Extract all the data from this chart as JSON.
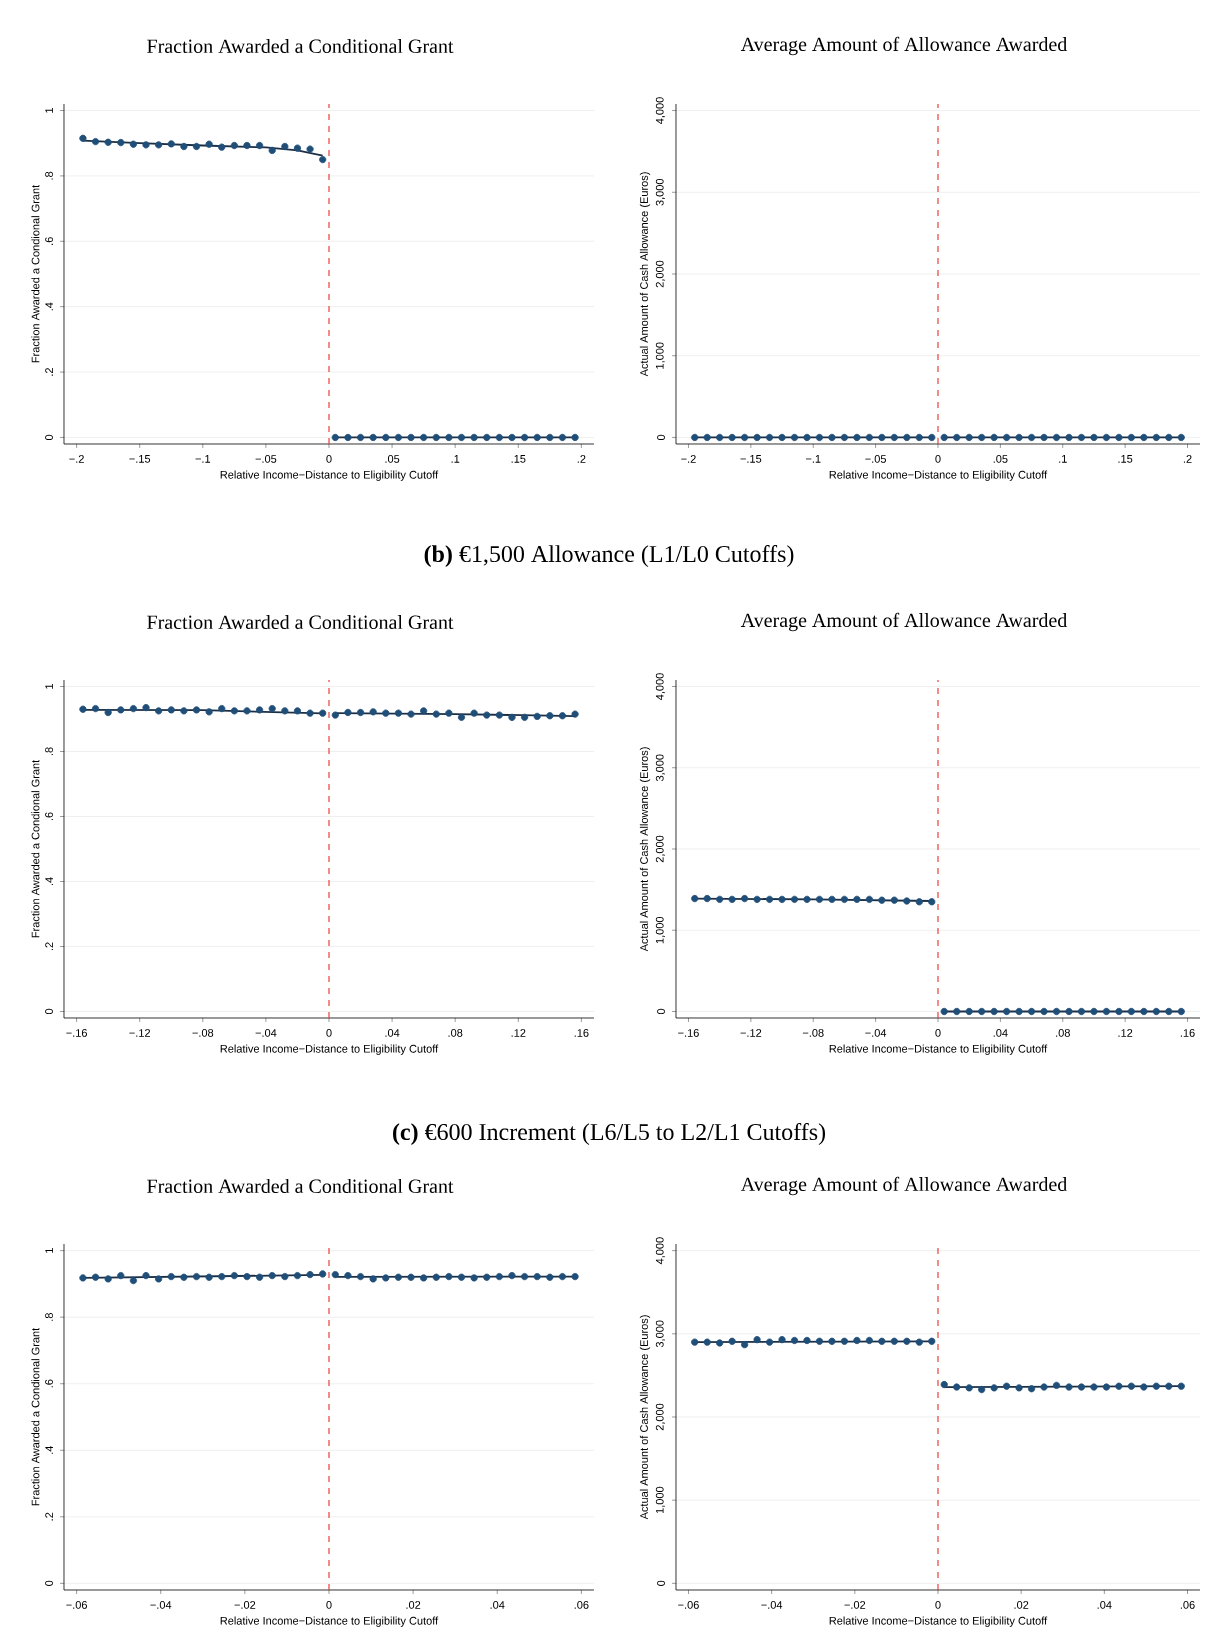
{
  "chart_data": [
    {
      "type": "scatter",
      "title": "Fraction Awarded a Conditional Grant",
      "xlabel": "Relative Income−Distance to Eligibility Cutoff",
      "ylabel": "Fraction Awarded a Condional Grant",
      "grid": "y",
      "xlim": [
        -0.21,
        0.21
      ],
      "ylim": [
        -0.02,
        1.02
      ],
      "xticks": [
        {
          "value": -0.2,
          "label": "−.2"
        },
        {
          "value": -0.15,
          "label": "−.15"
        },
        {
          "value": -0.1,
          "label": "−.1"
        },
        {
          "value": -0.05,
          "label": "−.05"
        },
        0,
        {
          "value": 0.05,
          "label": ".05"
        },
        {
          "value": 0.1,
          "label": ".1"
        },
        {
          "value": 0.15,
          "label": ".15"
        },
        {
          "value": 0.2,
          "label": ".2"
        }
      ],
      "yticks": [
        0,
        {
          "value": 0.2,
          "label": ".2"
        },
        {
          "value": 0.4,
          "label": ".4"
        },
        {
          "value": 0.6,
          "label": ".6"
        },
        {
          "value": 0.8,
          "label": ".8"
        },
        1
      ],
      "ref_lines": [
        {
          "axis": "x",
          "value": 0,
          "color": "#e8423c",
          "line_style": "dashed"
        }
      ],
      "x": [
        -0.195,
        -0.185,
        -0.175,
        -0.165,
        -0.155,
        -0.145,
        -0.135,
        -0.125,
        -0.115,
        -0.105,
        -0.095,
        -0.085,
        -0.075,
        -0.065,
        -0.055,
        -0.045,
        -0.035,
        -0.025,
        -0.015,
        -0.005,
        0.005,
        0.015,
        0.025,
        0.035,
        0.045,
        0.055,
        0.065,
        0.075,
        0.085,
        0.095,
        0.105,
        0.115,
        0.125,
        0.135,
        0.145,
        0.155,
        0.165,
        0.175,
        0.185,
        0.195
      ],
      "series": [
        {
          "type": "scatter",
          "marker": "circle",
          "color": "#1f4e79",
          "values": [
            0.915,
            0.905,
            0.903,
            0.902,
            0.897,
            0.895,
            0.895,
            0.898,
            0.89,
            0.89,
            0.897,
            0.888,
            0.893,
            0.893,
            0.893,
            0.878,
            0.89,
            0.885,
            0.882,
            0.85,
            0,
            0,
            0,
            0,
            0,
            0,
            0,
            0,
            0,
            0,
            0,
            0,
            0,
            0,
            0,
            0,
            0,
            0,
            0,
            0
          ]
        },
        {
          "type": "line",
          "color": "#1c2f45",
          "x": [
            -0.195,
            -0.15,
            -0.1,
            -0.05,
            -0.025,
            -0.005
          ],
          "values": [
            0.908,
            0.9,
            0.893,
            0.887,
            0.878,
            0.862
          ]
        },
        {
          "type": "line",
          "color": "#1c2f45",
          "x": [
            0.005,
            0.195
          ],
          "values": [
            0,
            0
          ]
        }
      ]
    },
    {
      "type": "scatter",
      "title": "Average Amount of Allowance Awarded",
      "xlabel": "Relative Income−Distance to Eligibility Cutoff",
      "ylabel": "Actual Amount of Cash Allowance (Euros)",
      "grid": "y",
      "xlim": [
        -0.21,
        0.21
      ],
      "ylim": [
        -80,
        4080
      ],
      "xticks": [
        {
          "value": -0.2,
          "label": "−.2"
        },
        {
          "value": -0.15,
          "label": "−.15"
        },
        {
          "value": -0.1,
          "label": "−.1"
        },
        {
          "value": -0.05,
          "label": "−.05"
        },
        0,
        {
          "value": 0.05,
          "label": ".05"
        },
        {
          "value": 0.1,
          "label": ".1"
        },
        {
          "value": 0.15,
          "label": ".15"
        },
        {
          "value": 0.2,
          "label": ".2"
        }
      ],
      "yticks": [
        0,
        {
          "value": 1000,
          "label": "1,000"
        },
        {
          "value": 2000,
          "label": "2,000"
        },
        {
          "value": 3000,
          "label": "3,000"
        },
        {
          "value": 4000,
          "label": "4,000"
        }
      ],
      "ref_lines": [
        {
          "axis": "x",
          "value": 0,
          "color": "#e8423c",
          "line_style": "dashed"
        }
      ],
      "x": [
        -0.195,
        -0.185,
        -0.175,
        -0.165,
        -0.155,
        -0.145,
        -0.135,
        -0.125,
        -0.115,
        -0.105,
        -0.095,
        -0.085,
        -0.075,
        -0.065,
        -0.055,
        -0.045,
        -0.035,
        -0.025,
        -0.015,
        -0.005,
        0.005,
        0.015,
        0.025,
        0.035,
        0.045,
        0.055,
        0.065,
        0.075,
        0.085,
        0.095,
        0.105,
        0.115,
        0.125,
        0.135,
        0.145,
        0.155,
        0.165,
        0.175,
        0.185,
        0.195
      ],
      "series": [
        {
          "type": "scatter",
          "marker": "circle",
          "color": "#1f4e79",
          "values": [
            0,
            0,
            0,
            0,
            0,
            0,
            0,
            0,
            0,
            0,
            0,
            0,
            0,
            0,
            0,
            0,
            0,
            0,
            0,
            0,
            0,
            0,
            0,
            0,
            0,
            0,
            0,
            0,
            0,
            0,
            0,
            0,
            0,
            0,
            0,
            0,
            0,
            0,
            0,
            0
          ]
        },
        {
          "type": "line",
          "color": "#1c2f45",
          "x": [
            -0.195,
            -0.005
          ],
          "values": [
            0,
            0
          ]
        },
        {
          "type": "line",
          "color": "#1c2f45",
          "x": [
            0.005,
            0.195
          ],
          "values": [
            0,
            0
          ]
        }
      ]
    },
    {
      "type": "other",
      "title": "**(b)** €1,500 Allowance (L1/L0 Cutoffs)"
    },
    {
      "type": "scatter",
      "title": "Fraction Awarded a Conditional Grant",
      "xlabel": "Relative Income−Distance to Eligibility Cutoff",
      "ylabel": "Fraction Awarded a Condional Grant",
      "grid": "y",
      "xlim": [
        -0.168,
        0.168
      ],
      "ylim": [
        -0.02,
        1.02
      ],
      "xticks": [
        {
          "value": -0.16,
          "label": "−.16"
        },
        {
          "value": -0.12,
          "label": "−.12"
        },
        {
          "value": -0.08,
          "label": "−.08"
        },
        {
          "value": -0.04,
          "label": "−.04"
        },
        0,
        {
          "value": 0.04,
          "label": ".04"
        },
        {
          "value": 0.08,
          "label": ".08"
        },
        {
          "value": 0.12,
          "label": ".12"
        },
        {
          "value": 0.16,
          "label": ".16"
        }
      ],
      "yticks": [
        0,
        {
          "value": 0.2,
          "label": ".2"
        },
        {
          "value": 0.4,
          "label": ".4"
        },
        {
          "value": 0.6,
          "label": ".6"
        },
        {
          "value": 0.8,
          "label": ".8"
        },
        1
      ],
      "ref_lines": [
        {
          "axis": "x",
          "value": 0,
          "color": "#e8423c",
          "line_style": "dashed"
        }
      ],
      "x": [
        -0.156,
        -0.148,
        -0.14,
        -0.132,
        -0.124,
        -0.116,
        -0.108,
        -0.1,
        -0.092,
        -0.084,
        -0.076,
        -0.068,
        -0.06,
        -0.052,
        -0.044,
        -0.036,
        -0.028,
        -0.02,
        -0.012,
        -0.004,
        0.004,
        0.012,
        0.02,
        0.028,
        0.036,
        0.044,
        0.052,
        0.06,
        0.068,
        0.076,
        0.084,
        0.092,
        0.1,
        0.108,
        0.116,
        0.124,
        0.132,
        0.14,
        0.148,
        0.156
      ],
      "series": [
        {
          "type": "scatter",
          "marker": "circle",
          "color": "#1f4e79",
          "values": [
            0.93,
            0.932,
            0.92,
            0.928,
            0.932,
            0.935,
            0.925,
            0.928,
            0.925,
            0.928,
            0.922,
            0.932,
            0.925,
            0.925,
            0.928,
            0.932,
            0.925,
            0.925,
            0.918,
            0.918,
            0.912,
            0.92,
            0.92,
            0.922,
            0.918,
            0.918,
            0.915,
            0.925,
            0.915,
            0.918,
            0.905,
            0.918,
            0.912,
            0.912,
            0.905,
            0.905,
            0.908,
            0.91,
            0.91,
            0.915
          ]
        },
        {
          "type": "line",
          "color": "#1c2f45",
          "x": [
            -0.156,
            -0.08,
            -0.004
          ],
          "values": [
            0.928,
            0.927,
            0.917
          ]
        },
        {
          "type": "line",
          "color": "#1c2f45",
          "x": [
            0.004,
            0.08,
            0.156
          ],
          "values": [
            0.918,
            0.915,
            0.909
          ]
        }
      ]
    },
    {
      "type": "scatter",
      "title": "Average Amount of Allowance Awarded",
      "xlabel": "Relative Income−Distance to Eligibility Cutoff",
      "ylabel": "Actual Amount of Cash Allowance (Euros)",
      "grid": "y",
      "xlim": [
        -0.168,
        0.168
      ],
      "ylim": [
        -80,
        4080
      ],
      "xticks": [
        {
          "value": -0.16,
          "label": "−.16"
        },
        {
          "value": -0.12,
          "label": "−.12"
        },
        {
          "value": -0.08,
          "label": "−.08"
        },
        {
          "value": -0.04,
          "label": "−.04"
        },
        0,
        {
          "value": 0.04,
          "label": ".04"
        },
        {
          "value": 0.08,
          "label": ".08"
        },
        {
          "value": 0.12,
          "label": ".12"
        },
        {
          "value": 0.16,
          "label": ".16"
        }
      ],
      "yticks": [
        0,
        {
          "value": 1000,
          "label": "1,000"
        },
        {
          "value": 2000,
          "label": "2,000"
        },
        {
          "value": 3000,
          "label": "3,000"
        },
        {
          "value": 4000,
          "label": "4,000"
        }
      ],
      "ref_lines": [
        {
          "axis": "x",
          "value": 0,
          "color": "#e8423c",
          "line_style": "dashed"
        }
      ],
      "x": [
        -0.156,
        -0.148,
        -0.14,
        -0.132,
        -0.124,
        -0.116,
        -0.108,
        -0.1,
        -0.092,
        -0.084,
        -0.076,
        -0.068,
        -0.06,
        -0.052,
        -0.044,
        -0.036,
        -0.028,
        -0.02,
        -0.012,
        -0.004,
        0.004,
        0.012,
        0.02,
        0.028,
        0.036,
        0.044,
        0.052,
        0.06,
        0.068,
        0.076,
        0.084,
        0.092,
        0.1,
        0.108,
        0.116,
        0.124,
        0.132,
        0.14,
        0.148,
        0.156
      ],
      "series": [
        {
          "type": "scatter",
          "marker": "circle",
          "color": "#1f4e79",
          "values": [
            1390,
            1390,
            1380,
            1380,
            1390,
            1380,
            1380,
            1380,
            1380,
            1380,
            1380,
            1380,
            1380,
            1380,
            1380,
            1370,
            1370,
            1360,
            1350,
            1350,
            0,
            0,
            0,
            0,
            0,
            0,
            0,
            0,
            0,
            0,
            0,
            0,
            0,
            0,
            0,
            0,
            0,
            0,
            0,
            0
          ]
        },
        {
          "type": "line",
          "color": "#1c2f45",
          "x": [
            -0.156,
            -0.08,
            -0.004
          ],
          "values": [
            1390,
            1380,
            1360
          ]
        },
        {
          "type": "line",
          "color": "#1c2f45",
          "x": [
            0.004,
            0.156
          ],
          "values": [
            0,
            0
          ]
        }
      ]
    },
    {
      "type": "other",
      "title": "**(c)** €600 Increment (L6/L5 to L2/L1 Cutoffs)"
    },
    {
      "type": "scatter",
      "title": "Fraction Awarded a Conditional Grant",
      "xlabel": "Relative Income−Distance to Eligibility Cutoff",
      "ylabel": "Fraction Awarded a Condional Grant",
      "grid": "y",
      "xlim": [
        -0.063,
        0.063
      ],
      "ylim": [
        -0.02,
        1.02
      ],
      "xticks": [
        {
          "value": -0.06,
          "label": "−.06"
        },
        {
          "value": -0.04,
          "label": "−.04"
        },
        {
          "value": -0.02,
          "label": "−.02"
        },
        0,
        {
          "value": 0.02,
          "label": ".02"
        },
        {
          "value": 0.04,
          "label": ".04"
        },
        {
          "value": 0.06,
          "label": ".06"
        }
      ],
      "yticks": [
        0,
        {
          "value": 0.2,
          "label": ".2"
        },
        {
          "value": 0.4,
          "label": ".4"
        },
        {
          "value": 0.6,
          "label": ".6"
        },
        {
          "value": 0.8,
          "label": ".8"
        },
        1
      ],
      "ref_lines": [
        {
          "axis": "x",
          "value": 0,
          "color": "#e8423c",
          "line_style": "dashed"
        }
      ],
      "x": [
        -0.0585,
        -0.0555,
        -0.0525,
        -0.0495,
        -0.0465,
        -0.0435,
        -0.0405,
        -0.0375,
        -0.0345,
        -0.0315,
        -0.0285,
        -0.0255,
        -0.0225,
        -0.0195,
        -0.0165,
        -0.0135,
        -0.0105,
        -0.0075,
        -0.0045,
        -0.0015,
        0.0015,
        0.0045,
        0.0075,
        0.0105,
        0.0135,
        0.0165,
        0.0195,
        0.0225,
        0.0255,
        0.0285,
        0.0315,
        0.0345,
        0.0375,
        0.0405,
        0.0435,
        0.0465,
        0.0495,
        0.0525,
        0.0555,
        0.0585
      ],
      "series": [
        {
          "type": "scatter",
          "marker": "circle",
          "color": "#1f4e79",
          "values": [
            0.918,
            0.92,
            0.915,
            0.925,
            0.91,
            0.925,
            0.915,
            0.922,
            0.92,
            0.922,
            0.92,
            0.922,
            0.925,
            0.922,
            0.92,
            0.925,
            0.922,
            0.925,
            0.928,
            0.93,
            0.928,
            0.925,
            0.922,
            0.915,
            0.918,
            0.92,
            0.92,
            0.918,
            0.92,
            0.922,
            0.92,
            0.918,
            0.92,
            0.922,
            0.925,
            0.922,
            0.922,
            0.92,
            0.922,
            0.922
          ]
        },
        {
          "type": "line",
          "color": "#1c2f45",
          "x": [
            -0.0585,
            -0.0015
          ],
          "values": [
            0.918,
            0.927
          ]
        },
        {
          "type": "line",
          "color": "#1c2f45",
          "x": [
            0.0015,
            0.0585
          ],
          "values": [
            0.921,
            0.922
          ]
        }
      ]
    },
    {
      "type": "scatter",
      "title": "Average Amount of Allowance Awarded",
      "xlabel": "Relative Income−Distance to Eligibility Cutoff",
      "ylabel": "Actual Amount of Cash Allowance (Euros)",
      "grid": "y",
      "xlim": [
        -0.063,
        0.063
      ],
      "ylim": [
        -80,
        4080
      ],
      "xticks": [
        {
          "value": -0.06,
          "label": "−.06"
        },
        {
          "value": -0.04,
          "label": "−.04"
        },
        {
          "value": -0.02,
          "label": "−.02"
        },
        0,
        {
          "value": 0.02,
          "label": ".02"
        },
        {
          "value": 0.04,
          "label": ".04"
        },
        {
          "value": 0.06,
          "label": ".06"
        }
      ],
      "yticks": [
        0,
        {
          "value": 1000,
          "label": "1,000"
        },
        {
          "value": 2000,
          "label": "2,000"
        },
        {
          "value": 3000,
          "label": "3,000"
        },
        {
          "value": 4000,
          "label": "4,000"
        }
      ],
      "ref_lines": [
        {
          "axis": "x",
          "value": 0,
          "color": "#e8423c",
          "line_style": "dashed"
        }
      ],
      "x": [
        -0.0585,
        -0.0555,
        -0.0525,
        -0.0495,
        -0.0465,
        -0.0435,
        -0.0405,
        -0.0375,
        -0.0345,
        -0.0315,
        -0.0285,
        -0.0255,
        -0.0225,
        -0.0195,
        -0.0165,
        -0.0135,
        -0.0105,
        -0.0075,
        -0.0045,
        -0.0015,
        0.0015,
        0.0045,
        0.0075,
        0.0105,
        0.0135,
        0.0165,
        0.0195,
        0.0225,
        0.0255,
        0.0285,
        0.0315,
        0.0345,
        0.0375,
        0.0405,
        0.0435,
        0.0465,
        0.0495,
        0.0525,
        0.0555,
        0.0585
      ],
      "series": [
        {
          "type": "scatter",
          "marker": "circle",
          "color": "#1f4e79",
          "values": [
            2900,
            2900,
            2890,
            2910,
            2870,
            2930,
            2900,
            2930,
            2920,
            2920,
            2910,
            2910,
            2910,
            2920,
            2920,
            2910,
            2910,
            2910,
            2900,
            2910,
            2390,
            2360,
            2350,
            2330,
            2350,
            2370,
            2350,
            2340,
            2360,
            2380,
            2360,
            2360,
            2360,
            2360,
            2370,
            2370,
            2360,
            2370,
            2370,
            2370
          ]
        },
        {
          "type": "line",
          "color": "#1c2f45",
          "x": [
            -0.0585,
            -0.0015
          ],
          "values": [
            2900,
            2910
          ]
        },
        {
          "type": "line",
          "color": "#1c2f45",
          "x": [
            0.0015,
            0.0585
          ],
          "values": [
            2360,
            2370
          ]
        }
      ]
    }
  ]
}
